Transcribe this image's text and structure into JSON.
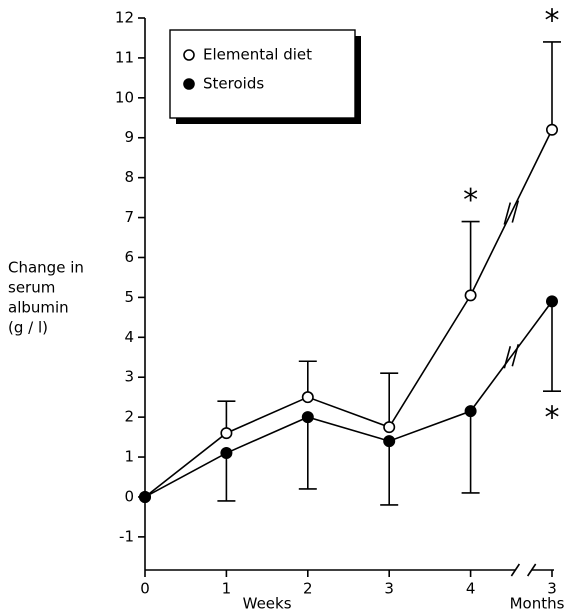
{
  "chart_data": {
    "type": "line",
    "ylabel": [
      "Change in",
      "serum",
      "albumin",
      "(g / l)"
    ],
    "xlabels": [
      "Weeks",
      "Months"
    ],
    "categories": [
      "0",
      "1",
      "2",
      "3",
      "4",
      "3"
    ],
    "series": [
      {
        "name": "Elemental diet",
        "color": "#000000",
        "marker_fill": "#ffffff",
        "error_direction": "up",
        "values": [
          0,
          1.6,
          2.5,
          1.75,
          5.05,
          9.2
        ],
        "errors": [
          null,
          0.8,
          0.9,
          1.35,
          1.85,
          2.2
        ]
      },
      {
        "name": "Steroids",
        "color": "#000000",
        "marker_fill": "#000000",
        "error_direction": "down",
        "values": [
          0,
          1.1,
          2.0,
          1.4,
          2.15,
          4.9
        ],
        "errors": [
          null,
          1.2,
          1.8,
          1.6,
          2.05,
          2.25
        ]
      }
    ],
    "annotations": [
      {
        "text": "*",
        "series": 0,
        "index": 4
      },
      {
        "text": "*",
        "series": 0,
        "index": 5
      },
      {
        "text": "*",
        "series": 1,
        "index": 5
      }
    ],
    "ylim": [
      -1.83,
      12
    ],
    "yticks": [
      -1,
      0,
      1,
      2,
      3,
      4,
      5,
      6,
      7,
      8,
      9,
      10,
      11,
      12
    ],
    "grid": false
  }
}
